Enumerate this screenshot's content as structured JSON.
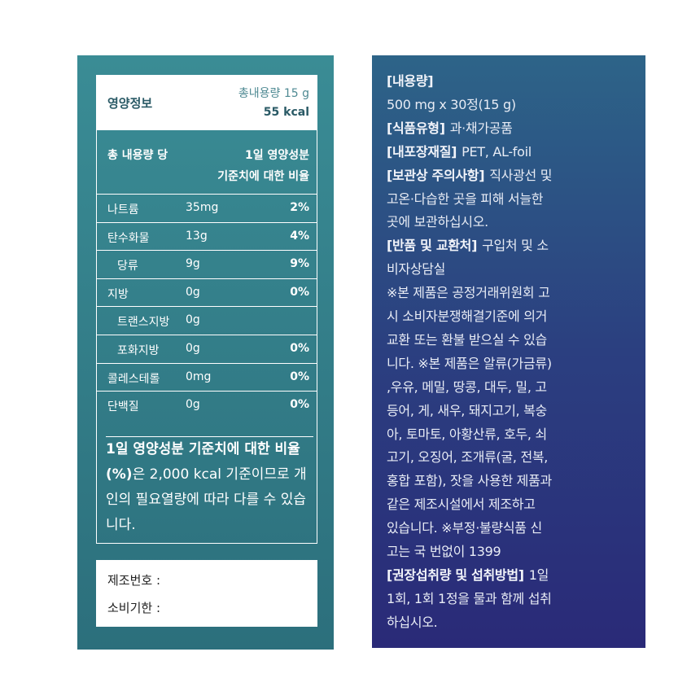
{
  "nutrition": {
    "title": "영양정보",
    "total": "총내용량 15 g",
    "kcal": "55 kcal",
    "header_left": "총 내용량 당",
    "header_right_1": "1일 영양성분",
    "header_right_2": "기준치에 대한 비율",
    "rows": [
      {
        "name": "나트륨",
        "amount": "35mg",
        "percent": "2%"
      },
      {
        "name": "탄수화물",
        "amount": "13g",
        "percent": "4%"
      },
      {
        "name": "당류",
        "amount": "9g",
        "percent": "9%",
        "sub": true
      },
      {
        "name": "지방",
        "amount": "0g",
        "percent": "0%"
      },
      {
        "name": "트랜스지방",
        "amount": "0g",
        "sub": true
      },
      {
        "name": "포화지방",
        "amount": "0g",
        "percent": "0%",
        "sub": true
      },
      {
        "name": "콜레스테롤",
        "amount": "0mg",
        "percent": "0%"
      },
      {
        "name": "단백질",
        "amount": "0g",
        "percent": "0%"
      }
    ],
    "note_bold": "1일 영양성분 기준치에 대한 비율(%)",
    "note": "은 2,000 kcal 기준이므로 개인의 필요열량에 따라 다를 수 있습니다.",
    "lot": "제조번호 :",
    "expiry": "소비기한 :"
  },
  "info": {
    "lines": [
      {
        "bold": "[내용량]"
      },
      {
        "text": "500 mg x 30정(15 g)"
      },
      {
        "bold": "[식품유형]",
        "text": "과·채가공품"
      },
      {
        "bold": "[내포장재질]",
        "text": "PET, AL-foil"
      },
      {
        "bold": "[보관상 주의사항]",
        "text": "직사광선 및"
      },
      {
        "text": "고온·다습한 곳을 피해 서늘한"
      },
      {
        "text": "곳에 보관하십시오."
      },
      {
        "bold": "[반품 및 교환처]",
        "text": "구입처 및 소"
      },
      {
        "text": "비자상담실"
      },
      {
        "text": "※본 제품은 공정거래위원회 고"
      },
      {
        "text": "시 소비자분쟁해결기준에 의거"
      },
      {
        "text": "교환 또는 환불 받으실 수 있습"
      },
      {
        "text": "니다. ※본 제품은 알류(가금류)"
      },
      {
        "text": ",우유, 메밀, 땅콩, 대두, 밀, 고"
      },
      {
        "text": "등어, 게, 새우, 돼지고기, 복숭"
      },
      {
        "text": "아, 토마토, 아황산류, 호두, 쇠"
      },
      {
        "text": "고기, 오징어, 조개류(굴, 전복,"
      },
      {
        "text": "홍합 포함), 잣을 사용한 제품과"
      },
      {
        "text": "같은 제조시설에서 제조하고"
      },
      {
        "text": "있습니다. ※부정·불량식품 신"
      },
      {
        "text": "고는 국 번없이 1399"
      },
      {
        "bold": "[권장섭취량 및 섭취방법]",
        "text": "1일"
      },
      {
        "text": "1회, 1회 1정을 물과 함께 섭취"
      },
      {
        "text": "하십시오."
      }
    ]
  }
}
